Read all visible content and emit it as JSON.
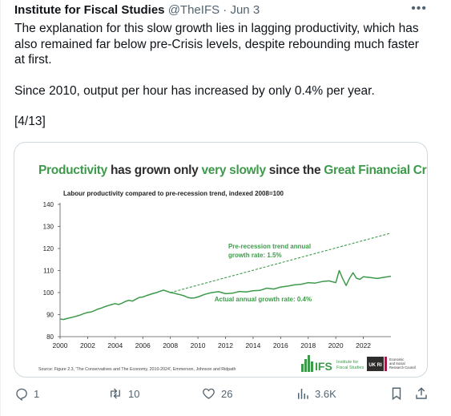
{
  "tweet": {
    "author_name": "Institute for Fiscal Studies",
    "handle": "@TheIFS",
    "separator": "·",
    "date": "Jun 3",
    "more_label": "•••",
    "paragraphs": [
      "The explanation for this slow growth lies in lagging productivity, which has also remained far below pre-Crisis levels, despite rebounding much faster at first.",
      "Since 2010, output per hour has increased by only 0.4% per year.",
      "[4/13]"
    ]
  },
  "chart_title_parts": [
    {
      "text": "Productivity",
      "color": "green"
    },
    {
      "text": " has grown only ",
      "color": "dark"
    },
    {
      "text": "very slowly",
      "color": "green"
    },
    {
      "text": " since the ",
      "color": "dark"
    },
    {
      "text": "Great Financial Crisis",
      "color": "green"
    }
  ],
  "chart_data": {
    "type": "line",
    "title": "Labour productivity compared to pre-recession trend, indexed 2008=100",
    "xlim": [
      2000,
      2024
    ],
    "ylim": [
      80,
      140
    ],
    "x_ticks": [
      2000,
      2002,
      2004,
      2006,
      2008,
      2010,
      2012,
      2014,
      2016,
      2018,
      2020,
      2022
    ],
    "y_ticks": [
      80,
      90,
      100,
      110,
      120,
      130,
      140
    ],
    "grid": false,
    "series": [
      {
        "name": "Actual",
        "style": "solid",
        "color": "#3d9a4b",
        "x": [
          2000.0,
          2000.25,
          2000.5,
          2000.75,
          2001.0,
          2001.25,
          2001.5,
          2001.75,
          2002.0,
          2002.25,
          2002.5,
          2002.75,
          2003.0,
          2003.25,
          2003.5,
          2003.75,
          2004.0,
          2004.25,
          2004.5,
          2004.75,
          2005.0,
          2005.25,
          2005.5,
          2005.75,
          2006.0,
          2006.25,
          2006.5,
          2006.75,
          2007.0,
          2007.25,
          2007.5,
          2007.75,
          2008.0,
          2008.25,
          2008.5,
          2008.75,
          2009.0,
          2009.25,
          2009.5,
          2009.75,
          2010.0,
          2010.5,
          2011.0,
          2011.5,
          2012.0,
          2012.5,
          2013.0,
          2013.5,
          2014.0,
          2014.5,
          2015.0,
          2015.5,
          2016.0,
          2016.5,
          2017.0,
          2017.5,
          2018.0,
          2018.5,
          2019.0,
          2019.5,
          2020.0,
          2020.25,
          2020.5,
          2020.75,
          2021.0,
          2021.25,
          2021.5,
          2021.75,
          2022.0,
          2022.5,
          2023.0,
          2023.5,
          2024.0
        ],
        "y": [
          88.0,
          87.8,
          88.2,
          88.6,
          89.0,
          89.4,
          89.9,
          90.5,
          91.0,
          91.2,
          91.8,
          92.5,
          93.0,
          93.6,
          94.1,
          94.6,
          95.0,
          94.6,
          95.2,
          96.0,
          96.5,
          96.1,
          97.0,
          97.8,
          98.0,
          98.6,
          99.1,
          99.6,
          100.0,
          100.6,
          101.1,
          100.6,
          100.0,
          99.8,
          99.3,
          99.0,
          98.5,
          97.8,
          97.5,
          97.6,
          98.0,
          99.2,
          100.0,
          100.4,
          99.5,
          99.7,
          100.5,
          100.3,
          100.8,
          101.0,
          102.0,
          101.6,
          102.5,
          102.9,
          103.5,
          103.8,
          104.5,
          104.3,
          105.0,
          105.3,
          104.5,
          110.0,
          106.3,
          103.2,
          106.5,
          109.0,
          106.5,
          106.0,
          107.2,
          106.8,
          106.4,
          106.9,
          107.4
        ]
      },
      {
        "name": "Pre-recession trend",
        "style": "dashed",
        "color": "#3d9a4b",
        "x": [
          2008,
          2024
        ],
        "y": [
          100,
          127
        ]
      }
    ],
    "annotations": [
      {
        "line1": "Pre-recession trend annual",
        "line2": "growth rate: 1.5%",
        "at_x": 2012.2,
        "at_y": 120.0
      },
      {
        "line1": "Actual annual growth rate: 0.4%",
        "line2": "",
        "at_x": 2011.2,
        "at_y": 96.0
      }
    ],
    "source": "Source: Figure 2.3, 'The Conservatives and The Economy, 2010-2024', Emmerson, Johnson and Ridpath"
  },
  "logos": {
    "ifs_mark": "IFS",
    "ifs_line1": "Institute for",
    "ifs_line2": "Fiscal Studies",
    "ukri_mark": "UK RI",
    "esrc_line1": "Economic",
    "esrc_line2": "and Social",
    "esrc_line3": "Research Council"
  },
  "actions": {
    "reply_count": "1",
    "retweet_count": "10",
    "like_count": "26",
    "views_count": "3.6K"
  },
  "colors": {
    "accent_green": "#3d9a4b",
    "dark_text": "#2d2d2d",
    "muted": "#536471"
  }
}
